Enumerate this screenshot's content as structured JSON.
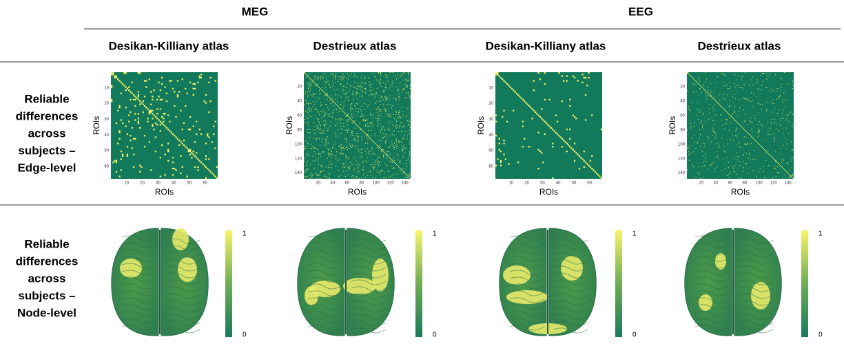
{
  "header": {
    "modalities": [
      "MEG",
      "EEG"
    ]
  },
  "columns": [
    {
      "atlas": "Desikan-Killiany atlas",
      "matrix": {
        "x_label": "ROIs",
        "y_label": "ROIs",
        "xticks": [
          10,
          20,
          30,
          40,
          50,
          60
        ],
        "yticks": [
          10,
          20,
          30,
          40,
          50,
          60
        ]
      },
      "colorbar": {
        "max": 1,
        "min": 0
      }
    },
    {
      "atlas": "Destrieux atlas",
      "matrix": {
        "x_label": "ROIs",
        "y_label": "ROIs",
        "xticks": [
          20,
          40,
          60,
          80,
          100,
          120,
          140
        ],
        "yticks": [
          20,
          40,
          60,
          80,
          100,
          120,
          140
        ]
      },
      "colorbar": {
        "max": 1,
        "min": 0
      }
    },
    {
      "atlas": "Desikan-Killiany atlas",
      "matrix": {
        "x_label": "ROIs",
        "y_label": "ROIs",
        "xticks": [
          10,
          20,
          30,
          40,
          50,
          60
        ],
        "yticks": [
          10,
          20,
          30,
          40,
          50,
          60
        ]
      },
      "colorbar": {
        "max": 1,
        "min": 0
      }
    },
    {
      "atlas": "Destrieux atlas",
      "matrix": {
        "x_label": "ROIs",
        "y_label": "ROIs",
        "xticks": [
          20,
          40,
          60,
          80,
          100,
          120,
          140
        ],
        "yticks": [
          20,
          40,
          60,
          80,
          100,
          120,
          140
        ]
      },
      "colorbar": {
        "max": 1,
        "min": 0
      }
    }
  ],
  "rows": [
    {
      "label": [
        "Reliable",
        "differences",
        "across",
        "subjects –",
        "Edge-level"
      ]
    },
    {
      "label": [
        "Reliable",
        "differences",
        "across",
        "subjects –",
        "Node-level"
      ]
    }
  ]
}
